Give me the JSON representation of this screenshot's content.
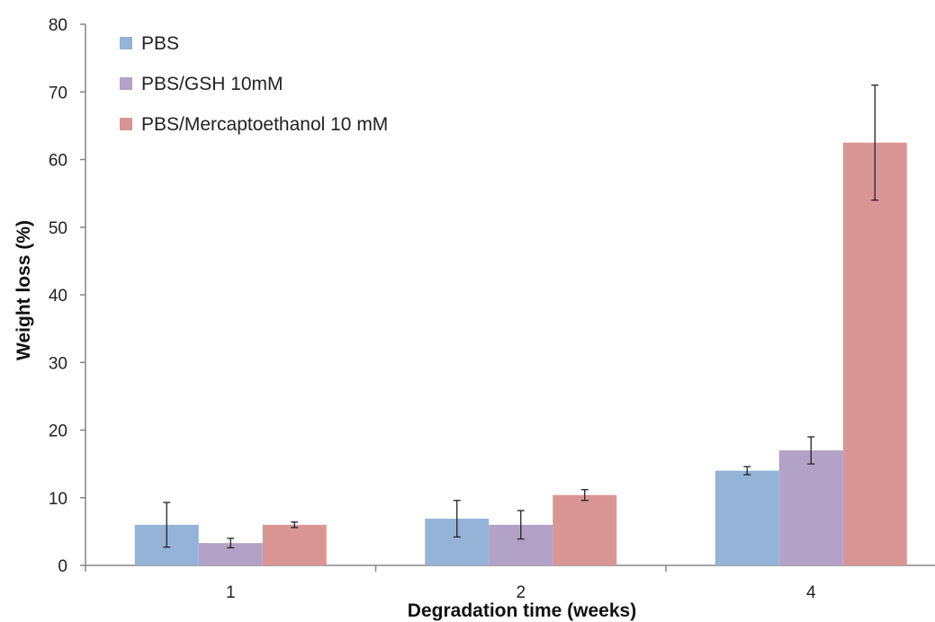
{
  "chart_data": {
    "type": "bar",
    "title": "",
    "xlabel": "Degradation time (weeks)",
    "ylabel": "Weight loss (%)",
    "categories": [
      "1",
      "2",
      "4"
    ],
    "ylim": [
      0,
      80
    ],
    "yticks": [
      0,
      10,
      20,
      30,
      40,
      50,
      60,
      70,
      80
    ],
    "grid": false,
    "legend_position": "top-left",
    "series": [
      {
        "name": "PBS",
        "color": "#95b3d7",
        "values": [
          6.0,
          6.9,
          14.0
        ],
        "errors": [
          3.3,
          2.7,
          0.6
        ]
      },
      {
        "name": "PBS/GSH 10mM",
        "color": "#b3a2c7",
        "values": [
          3.3,
          6.0,
          17.0
        ],
        "errors": [
          0.7,
          2.1,
          2.0
        ]
      },
      {
        "name": "PBS/Mercaptoethanol 10 mM",
        "color": "#d99594",
        "values": [
          6.0,
          10.4,
          62.5
        ],
        "errors": [
          0.4,
          0.8,
          8.5
        ]
      }
    ]
  }
}
